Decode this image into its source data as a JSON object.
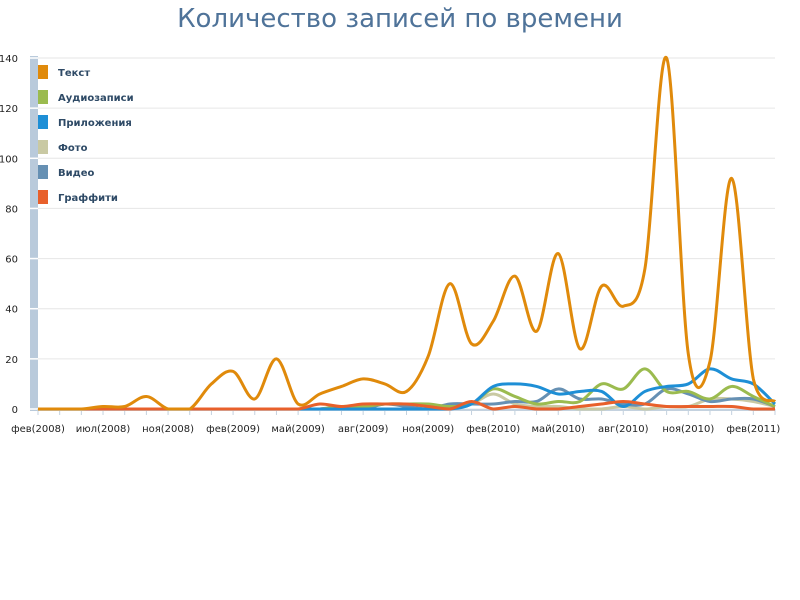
{
  "chart_data": {
    "type": "line",
    "title": "Количество записей по времени",
    "xlabel": "",
    "ylabel": "",
    "ylim": [
      0,
      140
    ],
    "yticks": [
      0,
      20,
      40,
      60,
      80,
      100,
      120,
      140
    ],
    "grid": true,
    "legend_position": "top-left",
    "x_tick_labels": [
      "фев(2008)",
      "июл(2008)",
      "ноя(2008)",
      "фев(2009)",
      "май(2009)",
      "авг(2009)",
      "ноя(2009)",
      "фев(2010)",
      "май(2010)",
      "авг(2010)",
      "ноя(2010)",
      "фев(2011)"
    ],
    "x_tick_label_every": 3,
    "point_count": 35,
    "series": [
      {
        "name": "Текст",
        "color": "#e08a0b",
        "values": [
          0,
          0,
          0,
          1,
          1,
          5,
          0,
          0,
          10,
          15,
          4,
          20,
          2,
          6,
          9,
          12,
          10,
          7,
          21,
          50,
          26,
          35,
          53,
          31,
          62,
          24,
          49,
          41,
          56,
          140,
          22,
          19,
          92,
          12,
          3
        ]
      },
      {
        "name": "Аудиозаписи",
        "color": "#9bbb4f",
        "values": [
          0,
          0,
          0,
          0,
          0,
          0,
          0,
          0,
          0,
          0,
          0,
          0,
          0,
          0,
          1,
          1,
          2,
          2,
          2,
          1,
          2,
          8,
          5,
          2,
          3,
          3,
          10,
          8,
          16,
          7,
          7,
          4,
          9,
          5,
          1
        ]
      },
      {
        "name": "Приложения",
        "color": "#1e8fd6",
        "values": [
          0,
          0,
          0,
          0,
          0,
          0,
          0,
          0,
          0,
          0,
          0,
          0,
          0,
          0,
          0,
          0,
          0,
          0,
          0,
          0,
          2,
          9,
          10,
          9,
          6,
          7,
          7,
          1,
          7,
          9,
          10,
          16,
          12,
          10,
          2
        ]
      },
      {
        "name": "Фото",
        "color": "#c9c9a3",
        "values": [
          0,
          0,
          0,
          0,
          0,
          0,
          0,
          0,
          0,
          0,
          0,
          0,
          0,
          0,
          0,
          0,
          0,
          0,
          0,
          1,
          2,
          6,
          2,
          1,
          1,
          0,
          0,
          1,
          0,
          1,
          1,
          4,
          4,
          3,
          1
        ]
      },
      {
        "name": "Видео",
        "color": "#6690b3",
        "values": [
          0,
          0,
          0,
          0,
          0,
          0,
          0,
          0,
          0,
          0,
          0,
          0,
          0,
          0,
          1,
          0,
          2,
          1,
          0,
          2,
          2,
          2,
          3,
          3,
          8,
          4,
          4,
          2,
          2,
          8,
          6,
          3,
          4,
          4,
          1
        ]
      },
      {
        "name": "Граффити",
        "color": "#e8602b",
        "values": [
          0,
          0,
          0,
          0,
          0,
          0,
          0,
          0,
          0,
          0,
          0,
          0,
          0,
          2,
          1,
          2,
          2,
          2,
          1,
          0,
          3,
          0,
          1,
          0,
          0,
          1,
          2,
          3,
          2,
          1,
          1,
          1,
          1,
          0,
          0
        ]
      }
    ]
  }
}
